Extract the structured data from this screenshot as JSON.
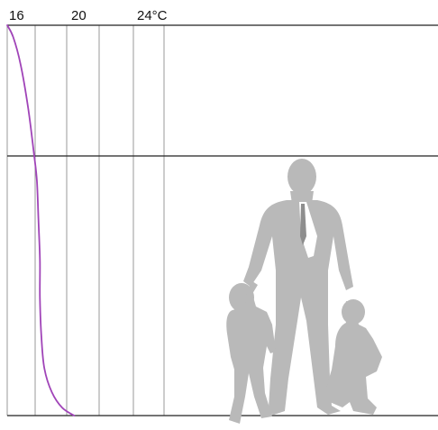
{
  "chart_data": {
    "type": "line",
    "x_tick_labels": [
      "16",
      "20",
      "24°C"
    ],
    "x_ticks": [
      16,
      20,
      24
    ],
    "xlim": [
      16,
      28
    ],
    "ylabel": "",
    "xlabel": "",
    "title": "",
    "series": [
      {
        "color": "#a044b8",
        "points_temperature_c": [
          16.0,
          16.4,
          16.9,
          17.4,
          17.8,
          18.0,
          18.1,
          18.2,
          18.2,
          18.3,
          18.5,
          19.0,
          19.7,
          20.5
        ],
        "points_height_fraction": [
          1.0,
          0.97,
          0.9,
          0.79,
          0.67,
          0.6,
          0.5,
          0.4,
          0.3,
          0.2,
          0.12,
          0.06,
          0.02,
          0.0
        ]
      }
    ],
    "grid": true
  },
  "figure": {
    "illustration": "adult-with-two-children-silhouettes",
    "silhouette_color": "#b9b9b9"
  }
}
